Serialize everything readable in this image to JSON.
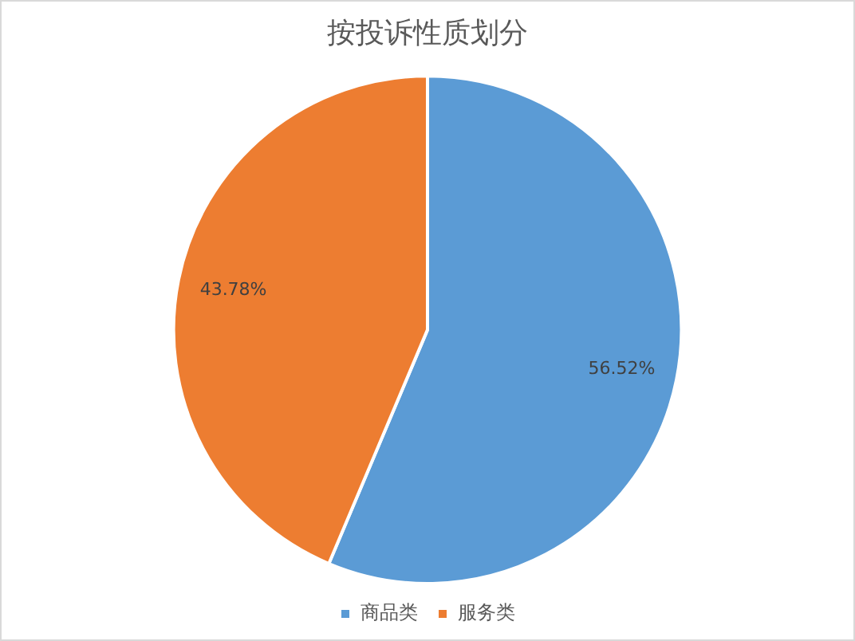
{
  "chart_data": {
    "type": "pie",
    "title": "按投诉性质划分",
    "categories": [
      "商品类",
      "服务类"
    ],
    "values": [
      56.52,
      43.78
    ],
    "value_labels": [
      "56.52%",
      "43.78%"
    ],
    "colors": [
      "#5b9bd5",
      "#ed7d31"
    ],
    "legend": "bottom"
  }
}
